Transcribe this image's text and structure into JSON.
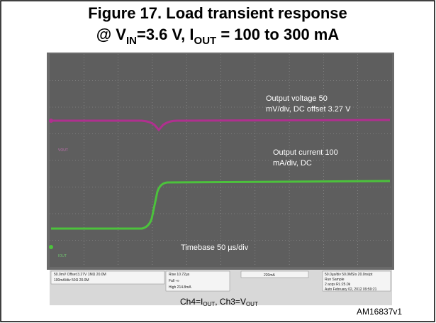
{
  "title": {
    "line1": "Figure 17. Load transient response",
    "line2": [
      "@ V",
      "IN",
      "=3.6 V, I",
      "OUT",
      " = 100 to 300 mA"
    ]
  },
  "scope": {
    "vout_label": "VOUT",
    "iout_label": "IOUT",
    "status": {
      "ch3": "50.0mV  Offset:3.27V   1MΩ  20.0M",
      "ch4": "100mA/div           50Ω  20.0M",
      "rise": "Rise     10.72µs",
      "fall": "Fall        -∞",
      "high": "High    214.8mA",
      "trigger": "220mA",
      "timebase": "50.0µs/div  50.0MS/s     20.0ns/pt",
      "run": "Run        Sample",
      "acqs": "2 acqs                 RL:25.0k",
      "date": "Auto   February 02, 2012   09:59:21"
    }
  },
  "annotations": {
    "vout": [
      "Output voltage 50",
      "mV/div, DC offset 3.27 V"
    ],
    "iout": [
      "Output current 100",
      "mA/div, DC"
    ],
    "timebase": "Timebase 50 µs/div"
  },
  "caption": [
    "Ch4=I",
    "OUT",
    ", Ch3=V",
    "OUT"
  ],
  "figure_id": "AM16837v1"
}
